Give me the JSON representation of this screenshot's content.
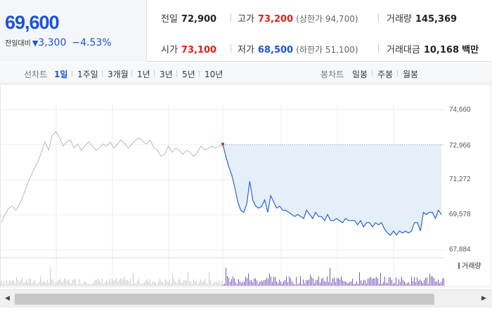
{
  "quote": {
    "current_price": "69,600",
    "change_label": "전일대비",
    "change_arrow": "▼",
    "change_value": "3,300",
    "change_pct": "−4.53%",
    "prev_close": {
      "label": "전일",
      "value": "72,900"
    },
    "high": {
      "label": "고가",
      "value": "73,200",
      "limit_label": "(상한가 94,700)"
    },
    "volume": {
      "label": "거래량",
      "value": "145,369"
    },
    "open": {
      "label": "시가",
      "value": "73,100"
    },
    "low": {
      "label": "저가",
      "value": "68,500",
      "limit_label": "(하한가 51,100)"
    },
    "trade_value": {
      "label": "거래대금",
      "value": "10,168",
      "unit": "백만"
    }
  },
  "toolbar": {
    "line_chart_label": "선차트",
    "line_periods": [
      "1일",
      "1주일",
      "3개월",
      "1년",
      "3년",
      "5년",
      "10년"
    ],
    "active_period": "1일",
    "candle_chart_label": "봉차트",
    "candle_periods": [
      "일봉",
      "주봉",
      "월봉"
    ]
  },
  "chart_data": {
    "type": "line",
    "y_ticks": [
      "74,660",
      "72,966",
      "71,272",
      "69,578",
      "67,884"
    ],
    "ylim": [
      67884,
      74660
    ],
    "reference_line": 72966,
    "volume_legend": "거래량",
    "colors": {
      "prev_day_line": "#b8b8b8",
      "today_line": "#2a63d3",
      "area_fill": "#e5effa",
      "volume_bar": "#7a55b8",
      "prev_volume_bar": "#c9c9c9",
      "start_marker": "#e0201b"
    },
    "prev_day_series": [
      69200,
      69600,
      69900,
      70000,
      69800,
      70100,
      70500,
      71000,
      71400,
      71800,
      72100,
      72600,
      73100,
      72700,
      73400,
      73600,
      73300,
      72900,
      73100,
      73200,
      72800,
      73000,
      72700,
      72900,
      73100,
      72900,
      72700,
      72800,
      73000,
      72900,
      73100,
      72800,
      73000,
      73200,
      73000,
      72800,
      73000,
      73200,
      73300,
      73100,
      73000,
      73200,
      72800,
      72700,
      72400,
      72500,
      72900,
      72600,
      72800,
      72700,
      72500,
      72700,
      72600,
      72400,
      72600,
      72900,
      72700,
      72800,
      72900,
      72800,
      72900,
      72900
    ],
    "today_series": [
      73000,
      72400,
      71900,
      71500,
      70900,
      70200,
      69800,
      69700,
      70100,
      71200,
      70300,
      70000,
      69900,
      70000,
      70300,
      69700,
      70500,
      70200,
      69900,
      70000,
      69800,
      69800,
      69700,
      69600,
      69500,
      69600,
      69500,
      69400,
      69800,
      69600,
      69400,
      69700,
      69500,
      69500,
      69300,
      69600,
      69300,
      69300,
      69400,
      69300,
      69200,
      69400,
      69300,
      69300,
      69300,
      69100,
      69300,
      69000,
      69200,
      69200,
      69000,
      69200,
      69100,
      69200,
      68900,
      68700,
      68600,
      68800,
      68600,
      68800,
      68700,
      68800,
      68700,
      68800,
      69200,
      69200,
      68800,
      69700,
      69600,
      69700,
      69700,
      69400,
      69800,
      69600
    ]
  }
}
